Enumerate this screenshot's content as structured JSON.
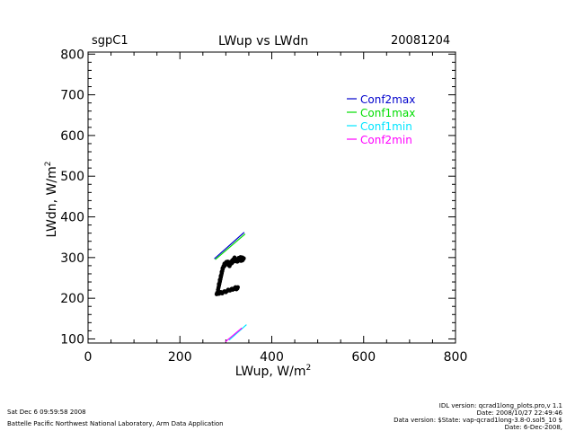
{
  "header": {
    "site": "sgpC1",
    "title": "LWup vs LWdn",
    "date": "20081204"
  },
  "footer": {
    "timestamp": "Sat Dec  6 09:59:58 2008",
    "lab": "Battelle Pacific Northwest National Laboratory, Arm Data Application",
    "idl_version": "IDL version: qcrad1long_plots.pro,v 1.1",
    "idl_date": "Date: 2008/10/27 22:49:46",
    "data_version": "Data version: $State: vap-qcrad1long-3.8-0.sol5_10 $",
    "data_date": "Date: 6-Dec-2008,"
  },
  "chart_data": {
    "type": "scatter",
    "title": "LWup vs LWdn",
    "xlabel": "LWup, W/m",
    "xlabel_sup": "2",
    "ylabel": "LWdn, W/m",
    "ylabel_sup": "2",
    "xlim": [
      0,
      800
    ],
    "ylim": [
      90,
      805
    ],
    "x_ticks": [
      0,
      200,
      400,
      600,
      800
    ],
    "y_ticks": [
      100,
      200,
      300,
      400,
      500,
      600,
      700,
      800
    ],
    "legend_position": "top-right",
    "series": [
      {
        "name": "Conf2max",
        "color": "#0000cc",
        "x": [
          275,
          340
        ],
        "y": [
          297,
          362
        ]
      },
      {
        "name": "Conf1max",
        "color": "#00dd00",
        "x": [
          277,
          342
        ],
        "y": [
          295,
          358
        ]
      },
      {
        "name": "Conf1min",
        "color": "#00e5ff",
        "x": [
          307,
          345
        ],
        "y": [
          97,
          135
        ]
      },
      {
        "name": "Conf2min",
        "color": "#ff00ff",
        "x": [
          299,
          335
        ],
        "y": [
          93,
          127
        ]
      }
    ],
    "points": {
      "color": "#000000",
      "xy": [
        [
          280,
          210
        ],
        [
          282,
          212
        ],
        [
          285,
          211
        ],
        [
          288,
          213
        ],
        [
          290,
          214
        ],
        [
          292,
          212
        ],
        [
          296,
          216
        ],
        [
          300,
          215
        ],
        [
          303,
          218
        ],
        [
          306,
          220
        ],
        [
          309,
          219
        ],
        [
          312,
          222
        ],
        [
          315,
          221
        ],
        [
          318,
          224
        ],
        [
          320,
          223
        ],
        [
          322,
          226
        ],
        [
          325,
          224
        ],
        [
          323,
          222
        ],
        [
          286,
          212
        ],
        [
          284,
          214
        ],
        [
          283,
          217
        ],
        [
          283,
          221
        ],
        [
          284,
          226
        ],
        [
          285,
          231
        ],
        [
          286,
          236
        ],
        [
          287,
          241
        ],
        [
          288,
          246
        ],
        [
          289,
          251
        ],
        [
          290,
          256
        ],
        [
          291,
          261
        ],
        [
          292,
          266
        ],
        [
          293,
          271
        ],
        [
          294,
          275
        ],
        [
          295,
          279
        ],
        [
          297,
          283
        ],
        [
          299,
          286
        ],
        [
          301,
          289
        ],
        [
          303,
          288
        ],
        [
          305,
          285
        ],
        [
          306,
          282
        ],
        [
          308,
          279
        ],
        [
          309,
          283
        ],
        [
          310,
          287
        ],
        [
          312,
          290
        ],
        [
          314,
          293
        ],
        [
          316,
          295
        ],
        [
          318,
          297
        ],
        [
          320,
          296
        ],
        [
          322,
          294
        ],
        [
          324,
          292
        ],
        [
          325,
          295
        ],
        [
          327,
          297
        ],
        [
          329,
          299
        ],
        [
          331,
          298
        ],
        [
          333,
          296
        ],
        [
          335,
          297
        ],
        [
          337,
          299
        ],
        [
          338,
          296
        ],
        [
          336,
          293
        ],
        [
          333,
          292
        ],
        [
          330,
          294
        ],
        [
          327,
          292
        ],
        [
          325,
          290
        ],
        [
          322,
          291
        ],
        [
          320,
          293
        ],
        [
          318,
          291
        ],
        [
          315,
          289
        ],
        [
          313,
          286
        ],
        [
          310,
          284
        ],
        [
          307,
          287
        ],
        [
          304,
          290
        ],
        [
          302,
          286
        ],
        [
          300,
          284
        ],
        [
          298,
          281
        ],
        [
          296,
          278
        ],
        [
          293,
          274
        ],
        [
          291,
          265
        ],
        [
          289,
          255
        ],
        [
          287,
          245
        ],
        [
          285,
          235
        ],
        [
          281,
          213
        ],
        [
          289,
          215
        ],
        [
          297,
          217
        ],
        [
          305,
          221
        ],
        [
          313,
          223
        ],
        [
          321,
          227
        ],
        [
          326,
          227
        ],
        [
          328,
          299
        ],
        [
          332,
          301
        ],
        [
          336,
          300
        ],
        [
          339,
          298
        ],
        [
          334,
          294
        ],
        [
          317,
          296
        ],
        [
          319,
          300
        ],
        [
          306,
          289
        ],
        [
          297,
          285
        ]
      ]
    }
  }
}
